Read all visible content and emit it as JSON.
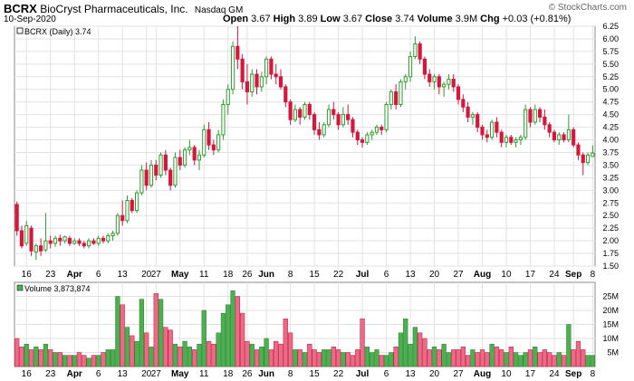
{
  "header": {
    "symbol": "BCRX",
    "company": "BioCryst Pharmaceuticals, Inc.",
    "exchange": "Nasdaq GM",
    "date": "10-Sep-2020",
    "watermark": "© StockCharts.com",
    "stats": [
      {
        "label": "Open",
        "value": "3.67"
      },
      {
        "label": "High",
        "value": "3.89"
      },
      {
        "label": "Low",
        "value": "3.67"
      },
      {
        "label": "Close",
        "value": "3.74"
      },
      {
        "label": "Volume",
        "value": "3.9M"
      },
      {
        "label": "Chg",
        "value": "+0.03 (+0.81%)"
      }
    ]
  },
  "chart_data": [
    {
      "type": "candlestick",
      "legend": "BCRX (Daily) 3.74",
      "colors": {
        "up": "#2e9e2e",
        "down": "#d6163c"
      },
      "ylim": [
        1.5,
        6.25
      ],
      "y_ticks": [
        "1.50",
        "1.75",
        "2.00",
        "2.25",
        "2.50",
        "2.75",
        "3.00",
        "3.25",
        "3.50",
        "3.75",
        "4.00",
        "4.25",
        "4.50",
        "4.75",
        "5.00",
        "5.25",
        "5.50",
        "5.75",
        "6.00",
        "6.25"
      ],
      "x_ticks": [
        "16",
        "23",
        "Apr",
        "6",
        "13",
        "20",
        "27",
        "May",
        "11",
        "18",
        "26",
        "Jun",
        "8",
        "15",
        "22",
        "Jul",
        "6",
        "13",
        "20",
        "27",
        "Aug",
        "10",
        "17",
        "24",
        "Sep",
        "8"
      ],
      "ohlc": [
        [
          2.72,
          2.78,
          2.1,
          2.2
        ],
        [
          2.2,
          2.3,
          1.85,
          1.9
        ],
        [
          1.95,
          2.4,
          1.9,
          2.3
        ],
        [
          2.25,
          2.3,
          1.7,
          1.8
        ],
        [
          1.78,
          1.95,
          1.62,
          1.9
        ],
        [
          1.9,
          2.05,
          1.7,
          1.8
        ],
        [
          1.82,
          2.55,
          1.78,
          2.0
        ],
        [
          2.0,
          2.1,
          1.85,
          1.95
        ],
        [
          1.95,
          2.1,
          1.88,
          2.05
        ],
        [
          2.05,
          2.12,
          1.9,
          2.0
        ],
        [
          2.0,
          2.1,
          1.95,
          2.08
        ],
        [
          2.05,
          2.1,
          1.9,
          1.95
        ],
        [
          1.95,
          2.05,
          1.92,
          2.0
        ],
        [
          2.0,
          2.05,
          1.9,
          1.95
        ],
        [
          1.95,
          2.0,
          1.85,
          1.9
        ],
        [
          1.9,
          2.05,
          1.85,
          2.0
        ],
        [
          2.0,
          2.05,
          1.92,
          1.95
        ],
        [
          1.95,
          2.1,
          1.9,
          2.05
        ],
        [
          2.05,
          2.1,
          1.95,
          2.0
        ],
        [
          2.0,
          2.15,
          1.95,
          2.1
        ],
        [
          2.1,
          2.2,
          2.0,
          2.15
        ],
        [
          2.15,
          2.55,
          2.1,
          2.5
        ],
        [
          2.5,
          2.8,
          2.3,
          2.4
        ],
        [
          2.4,
          2.9,
          2.35,
          2.8
        ],
        [
          2.8,
          2.85,
          2.55,
          2.6
        ],
        [
          2.6,
          3.0,
          2.55,
          2.95
        ],
        [
          2.95,
          3.5,
          2.9,
          3.4
        ],
        [
          3.4,
          3.55,
          3.0,
          3.1
        ],
        [
          3.1,
          3.6,
          3.05,
          3.5
        ],
        [
          3.5,
          3.6,
          3.2,
          3.3
        ],
        [
          3.3,
          3.75,
          3.25,
          3.7
        ],
        [
          3.7,
          3.8,
          3.3,
          3.4
        ],
        [
          3.4,
          3.45,
          3.0,
          3.1
        ],
        [
          3.1,
          3.75,
          3.05,
          3.65
        ],
        [
          3.65,
          3.8,
          3.4,
          3.5
        ],
        [
          3.5,
          3.85,
          3.45,
          3.8
        ],
        [
          3.8,
          4.0,
          3.7,
          3.85
        ],
        [
          3.85,
          3.9,
          3.5,
          3.6
        ],
        [
          3.6,
          3.8,
          3.4,
          3.7
        ],
        [
          3.7,
          4.3,
          3.65,
          4.2
        ],
        [
          4.2,
          4.35,
          3.8,
          3.9
        ],
        [
          3.9,
          4.0,
          3.7,
          3.8
        ],
        [
          3.8,
          4.2,
          3.75,
          4.1
        ],
        [
          4.1,
          4.8,
          4.0,
          4.7
        ],
        [
          4.7,
          5.1,
          4.5,
          5.0
        ],
        [
          5.0,
          5.95,
          4.9,
          5.85
        ],
        [
          5.85,
          6.25,
          5.4,
          5.6
        ],
        [
          5.6,
          5.7,
          5.0,
          5.15
        ],
        [
          5.15,
          5.5,
          4.7,
          4.95
        ],
        [
          4.95,
          5.4,
          4.85,
          5.3
        ],
        [
          5.3,
          5.4,
          4.9,
          5.05
        ],
        [
          5.05,
          5.35,
          4.95,
          5.25
        ],
        [
          5.25,
          5.65,
          5.1,
          5.6
        ],
        [
          5.6,
          5.65,
          5.2,
          5.3
        ],
        [
          5.3,
          5.5,
          5.1,
          5.25
        ],
        [
          5.25,
          5.4,
          5.0,
          5.05
        ],
        [
          5.05,
          5.1,
          4.65,
          4.75
        ],
        [
          4.75,
          4.8,
          4.3,
          4.4
        ],
        [
          4.4,
          4.7,
          4.35,
          4.6
        ],
        [
          4.6,
          4.65,
          4.3,
          4.45
        ],
        [
          4.45,
          4.75,
          4.4,
          4.7
        ],
        [
          4.7,
          4.75,
          4.4,
          4.5
        ],
        [
          4.5,
          4.55,
          4.1,
          4.2
        ],
        [
          4.2,
          4.35,
          4.0,
          4.1
        ],
        [
          4.1,
          4.35,
          4.05,
          4.3
        ],
        [
          4.3,
          4.7,
          4.25,
          4.6
        ],
        [
          4.6,
          4.75,
          4.4,
          4.5
        ],
        [
          4.5,
          4.55,
          4.2,
          4.3
        ],
        [
          4.3,
          4.65,
          4.25,
          4.5
        ],
        [
          4.5,
          4.7,
          4.3,
          4.4
        ],
        [
          4.4,
          4.45,
          4.05,
          4.15
        ],
        [
          4.15,
          4.2,
          3.9,
          4.0
        ],
        [
          4.0,
          4.05,
          3.85,
          3.95
        ],
        [
          3.95,
          4.15,
          3.9,
          4.1
        ],
        [
          4.1,
          4.2,
          4.0,
          4.15
        ],
        [
          4.15,
          4.3,
          4.1,
          4.25
        ],
        [
          4.25,
          4.3,
          4.1,
          4.2
        ],
        [
          4.2,
          4.75,
          4.15,
          4.7
        ],
        [
          4.7,
          5.0,
          4.6,
          4.95
        ],
        [
          4.95,
          5.1,
          4.6,
          4.7
        ],
        [
          4.7,
          5.2,
          4.65,
          5.15
        ],
        [
          5.15,
          5.3,
          5.0,
          5.25
        ],
        [
          5.25,
          5.75,
          5.15,
          5.65
        ],
        [
          5.65,
          6.05,
          5.6,
          5.9
        ],
        [
          5.9,
          5.95,
          5.5,
          5.6
        ],
        [
          5.6,
          5.65,
          5.2,
          5.3
        ],
        [
          5.3,
          5.4,
          5.05,
          5.15
        ],
        [
          5.15,
          5.3,
          5.0,
          5.25
        ],
        [
          5.25,
          5.3,
          4.9,
          5.05
        ],
        [
          5.05,
          5.15,
          4.85,
          5.1
        ],
        [
          5.1,
          5.3,
          5.0,
          5.2
        ],
        [
          5.2,
          5.3,
          4.95,
          5.05
        ],
        [
          5.05,
          5.1,
          4.7,
          4.8
        ],
        [
          4.8,
          4.9,
          4.55,
          4.65
        ],
        [
          4.65,
          4.75,
          4.35,
          4.45
        ],
        [
          4.45,
          4.55,
          4.3,
          4.5
        ],
        [
          4.5,
          4.55,
          4.15,
          4.25
        ],
        [
          4.25,
          4.3,
          4.0,
          4.1
        ],
        [
          4.1,
          4.2,
          3.95,
          4.05
        ],
        [
          4.05,
          4.4,
          4.0,
          4.35
        ],
        [
          4.35,
          4.45,
          4.05,
          4.15
        ],
        [
          4.15,
          4.2,
          3.85,
          3.95
        ],
        [
          3.95,
          4.1,
          3.85,
          4.05
        ],
        [
          4.05,
          4.1,
          3.9,
          3.95
        ],
        [
          3.95,
          4.05,
          3.85,
          4.0
        ],
        [
          4.0,
          4.1,
          3.9,
          4.05
        ],
        [
          4.05,
          4.7,
          4.0,
          4.6
        ],
        [
          4.6,
          4.65,
          4.25,
          4.35
        ],
        [
          4.35,
          4.7,
          4.3,
          4.6
        ],
        [
          4.6,
          4.65,
          4.35,
          4.45
        ],
        [
          4.45,
          4.6,
          4.2,
          4.3
        ],
        [
          4.3,
          4.35,
          4.05,
          4.15
        ],
        [
          4.15,
          4.2,
          3.95,
          4.0
        ],
        [
          4.0,
          4.15,
          3.9,
          4.1
        ],
        [
          4.1,
          4.15,
          3.95,
          4.0
        ],
        [
          4.0,
          4.5,
          3.95,
          4.2
        ],
        [
          4.2,
          4.25,
          3.85,
          3.9
        ],
        [
          3.9,
          3.95,
          3.6,
          3.7
        ],
        [
          3.7,
          3.75,
          3.3,
          3.55
        ],
        [
          3.55,
          3.75,
          3.5,
          3.7
        ],
        [
          3.67,
          3.89,
          3.67,
          3.74
        ]
      ]
    },
    {
      "type": "bar",
      "legend": "Volume 3,873,874",
      "ylim": [
        0,
        30
      ],
      "unit": "M",
      "y_ticks": [
        "5M",
        "10M",
        "15M",
        "20M",
        "25M"
      ],
      "values": [
        10,
        7,
        8,
        6,
        7,
        6,
        8,
        6,
        5,
        5,
        4,
        4,
        4,
        5,
        4,
        3,
        4,
        4,
        5,
        6,
        6,
        25,
        22,
        14,
        11,
        9,
        24,
        12,
        7,
        26,
        24,
        14,
        13,
        8,
        7,
        9,
        7,
        6,
        8,
        20,
        9,
        8,
        12,
        19,
        22,
        27,
        25,
        19,
        9,
        8,
        6,
        7,
        10,
        6,
        9,
        8,
        17,
        12,
        6,
        6,
        5,
        8,
        6,
        5,
        6,
        6,
        7,
        6,
        5,
        5,
        4,
        6,
        17,
        7,
        5,
        6,
        4,
        4,
        5,
        7,
        12,
        17,
        8,
        14,
        12,
        10,
        6,
        7,
        6,
        8,
        5,
        6,
        6,
        7,
        4,
        6,
        5,
        6,
        5,
        8,
        7,
        6,
        5,
        7,
        5,
        4,
        5,
        6,
        7,
        5,
        6,
        5,
        4,
        5,
        4,
        15,
        6,
        9,
        6,
        4,
        4
      ]
    }
  ]
}
